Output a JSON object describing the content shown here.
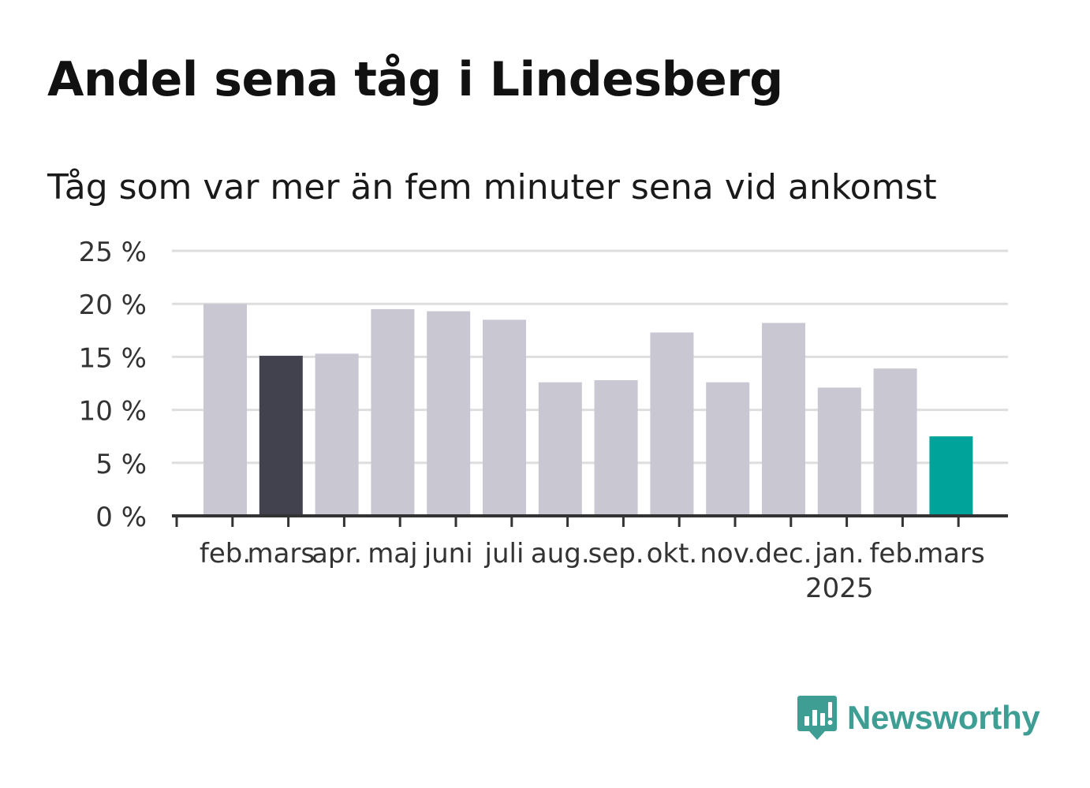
{
  "title": "Andel sena tåg i Lindesberg",
  "subtitle": "Tåg som var mer än fem minuter sena vid ankomst",
  "brand": {
    "name": "Newsworthy",
    "logo_icon": "newsworthy-chart-logo-icon",
    "color": "#3f9e94"
  },
  "colors": {
    "default_bar": "#c8c7d2",
    "highlight_start": "#42414e",
    "highlight_end": "#00a399",
    "grid": "#dedede",
    "axis": "#333333",
    "text": "#333333"
  },
  "chart_data": {
    "type": "bar",
    "title": "Andel sena tåg i Lindesberg",
    "subtitle": "Tåg som var mer än fem minuter sena vid ankomst",
    "categories": [
      "feb.",
      "mars",
      "apr.",
      "maj",
      "juni",
      "juli",
      "aug.",
      "sep.",
      "okt.",
      "nov.",
      "dec.",
      "jan.",
      "feb.",
      "mars"
    ],
    "year_labels": [
      {
        "index": 11,
        "label": "2025"
      }
    ],
    "values": [
      20.0,
      15.1,
      15.3,
      19.5,
      19.3,
      18.5,
      12.6,
      12.8,
      17.3,
      12.6,
      18.2,
      12.1,
      13.9,
      7.5
    ],
    "bar_colors": [
      "#c8c7d2",
      "#42414e",
      "#c8c7d2",
      "#c8c7d2",
      "#c8c7d2",
      "#c8c7d2",
      "#c8c7d2",
      "#c8c7d2",
      "#c8c7d2",
      "#c8c7d2",
      "#c8c7d2",
      "#c8c7d2",
      "#c8c7d2",
      "#00a399"
    ],
    "ylim": [
      0,
      25
    ],
    "yticks": [
      0,
      5,
      10,
      15,
      20,
      25
    ],
    "ytick_labels": [
      "0 %",
      "5 %",
      "10 %",
      "15 %",
      "20 %",
      "25 %"
    ],
    "xlabel": "",
    "ylabel": "",
    "grid": true,
    "legend": "none"
  }
}
